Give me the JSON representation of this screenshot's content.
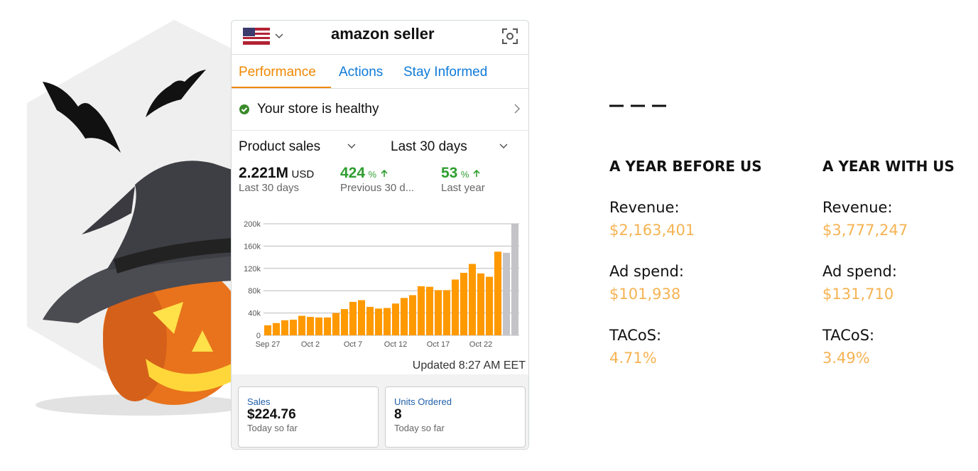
{
  "app": {
    "brand": "amazon seller",
    "tabs": [
      "Performance",
      "Actions",
      "Stay Informed"
    ],
    "status": "Your store is healthy",
    "metric_selector": "Product sales",
    "period_selector": "Last 30 days",
    "stats": [
      {
        "value": "2.221M",
        "unit": "USD",
        "caption": "Last 30 days"
      },
      {
        "value": "424",
        "unit": "%",
        "caption": "Previous 30 d..."
      },
      {
        "value": "53",
        "unit": "%",
        "caption": "Last year"
      }
    ],
    "updated": "Updated 8:27 AM EET",
    "cards": [
      {
        "label": "Sales",
        "value": "$224.76",
        "caption": "Today so far"
      },
      {
        "label": "Units Ordered",
        "value": "8",
        "caption": "Today so far"
      }
    ]
  },
  "chart_data": {
    "type": "bar",
    "categories": [
      "Sep 27",
      null,
      null,
      null,
      null,
      "Oct 2",
      null,
      null,
      null,
      null,
      "Oct 7",
      null,
      null,
      null,
      null,
      "Oct 12",
      null,
      null,
      null,
      null,
      "Oct 17",
      null,
      null,
      null,
      null,
      "Oct 22",
      null,
      null,
      null,
      null
    ],
    "values": [
      18000,
      22000,
      27000,
      28000,
      35000,
      33000,
      32000,
      32000,
      40000,
      47000,
      60000,
      63000,
      51000,
      48000,
      49000,
      57000,
      67000,
      72000,
      88000,
      87000,
      81000,
      81000,
      100000,
      112000,
      128000,
      111000,
      105000,
      150000,
      148000,
      200000
    ],
    "colors": [
      "#ff9900",
      "#ff9900",
      "#ff9900",
      "#ff9900",
      "#ff9900",
      "#ff9900",
      "#ff9900",
      "#ff9900",
      "#ff9900",
      "#ff9900",
      "#ff9900",
      "#ff9900",
      "#ff9900",
      "#ff9900",
      "#ff9900",
      "#ff9900",
      "#ff9900",
      "#ff9900",
      "#ff9900",
      "#ff9900",
      "#ff9900",
      "#ff9900",
      "#ff9900",
      "#ff9900",
      "#ff9900",
      "#ff9900",
      "#ff9900",
      "#ff9900",
      "#c4c4c8",
      "#c4c4c8"
    ],
    "ylim": [
      0,
      200000
    ],
    "yticks": [
      0,
      {
        "value": 40000,
        "label": "40k"
      },
      {
        "value": 80000,
        "label": "80k"
      },
      {
        "value": 120000,
        "label": "120k"
      },
      {
        "value": 160000,
        "label": "160k"
      },
      {
        "value": 200000,
        "label": "200k"
      }
    ],
    "grid": true
  },
  "results": {
    "columns": [
      {
        "heading": "A YEAR BEFORE US",
        "rows": [
          {
            "label": "Revenue:",
            "value": "$2,163,401"
          },
          {
            "label": "Ad spend:",
            "value": "$101,938"
          },
          {
            "label": "TACoS:",
            "value": "4.71%"
          }
        ]
      },
      {
        "heading": "A YEAR WITH US",
        "rows": [
          {
            "label": "Revenue:",
            "value": "$3,777,247"
          },
          {
            "label": "Ad spend:",
            "value": "$131,710"
          },
          {
            "label": "TACoS:",
            "value": "3.49%"
          }
        ]
      }
    ]
  }
}
